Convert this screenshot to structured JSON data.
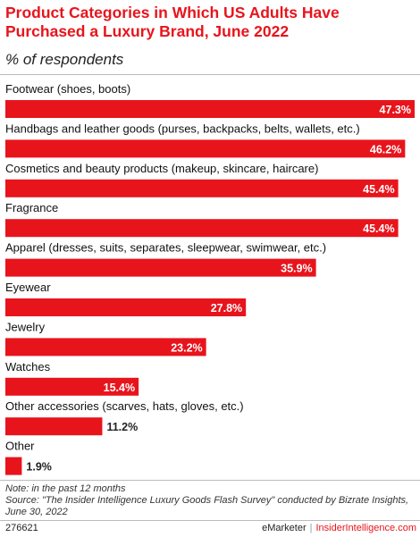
{
  "chart_data": {
    "type": "bar",
    "orientation": "horizontal",
    "title": "Product Categories in Which US Adults Have Purchased a Luxury Brand, June 2022",
    "subtitle": "% of respondents",
    "categories": [
      "Footwear (shoes, boots)",
      "Handbags and leather goods (purses, backpacks, belts, wallets, etc.)",
      "Cosmetics and beauty products (makeup, skincare, haircare)",
      "Fragrance",
      "Apparel (dresses, suits, separates, sleepwear, swimwear, etc.)",
      "Eyewear",
      "Jewelry",
      "Watches",
      "Other accessories (scarves, hats, gloves, etc.)",
      "Other"
    ],
    "values": [
      47.3,
      46.2,
      45.4,
      45.4,
      35.9,
      27.8,
      23.2,
      15.4,
      11.2,
      1.9
    ],
    "value_labels": [
      "47.3%",
      "46.2%",
      "45.4%",
      "45.4%",
      "35.9%",
      "27.8%",
      "23.2%",
      "15.4%",
      "11.2%",
      "1.9%"
    ],
    "xlim": [
      0,
      47.3
    ],
    "bar_color": "#e8141c",
    "grid": false
  },
  "note_line1": "Note: in the past 12 months",
  "note_line2": "Source: \"The Insider Intelligence Luxury Goods Flash Survey\" conducted by Bizrate Insights, June 30, 2022",
  "footer": {
    "chart_id": "276621",
    "brand_left": "eMarketer",
    "separator": "|",
    "brand_right": "InsiderIntelligence.com"
  },
  "colors": {
    "accent": "#e8141c",
    "label_inside": "#ffffff",
    "label_outside": "#222222"
  }
}
